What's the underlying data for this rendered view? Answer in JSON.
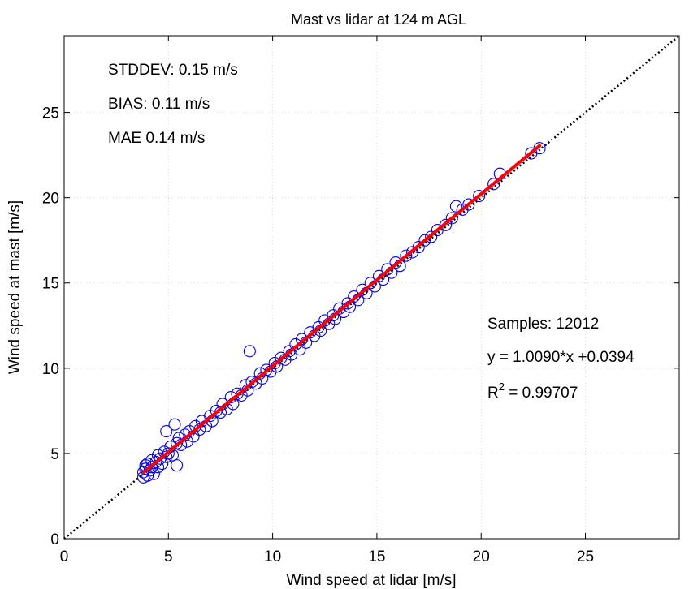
{
  "chart_data": {
    "type": "scatter",
    "title": "Mast vs lidar at 124 m AGL",
    "xlabel": "Wind speed at lidar [m/s]",
    "ylabel": "Wind speed at mast [m/s]",
    "xlim": [
      0,
      29.5
    ],
    "ylim": [
      0,
      29.5
    ],
    "xticks": [
      0,
      5,
      10,
      15,
      20,
      25
    ],
    "yticks": [
      0,
      5,
      10,
      15,
      20,
      25
    ],
    "grid": true,
    "colors": {
      "points": "#0000ff",
      "fit": "#ff0000",
      "reference": "#000000"
    },
    "series": [
      {
        "marker": "open-circle",
        "points": [
          [
            3.8,
            3.6
          ],
          [
            3.8,
            3.9
          ],
          [
            3.9,
            4.1
          ],
          [
            3.9,
            4.3
          ],
          [
            4.0,
            3.7
          ],
          [
            4.0,
            4.4
          ],
          [
            4.1,
            4.0
          ],
          [
            4.2,
            4.6
          ],
          [
            4.2,
            4.2
          ],
          [
            4.3,
            3.8
          ],
          [
            4.4,
            4.5
          ],
          [
            4.5,
            4.9
          ],
          [
            4.5,
            4.2
          ],
          [
            4.6,
            4.7
          ],
          [
            4.7,
            4.4
          ],
          [
            4.8,
            5.1
          ],
          [
            4.9,
            4.8
          ],
          [
            4.9,
            6.3
          ],
          [
            5.0,
            5.0
          ],
          [
            5.1,
            5.4
          ],
          [
            5.2,
            4.9
          ],
          [
            5.3,
            6.7
          ],
          [
            5.4,
            5.6
          ],
          [
            5.4,
            4.3
          ],
          [
            5.5,
            5.9
          ],
          [
            5.6,
            5.5
          ],
          [
            5.8,
            6.1
          ],
          [
            5.9,
            5.7
          ],
          [
            6.0,
            6.3
          ],
          [
            6.2,
            6.0
          ],
          [
            6.3,
            6.6
          ],
          [
            6.5,
            6.4
          ],
          [
            6.6,
            6.9
          ],
          [
            6.8,
            6.6
          ],
          [
            7.0,
            7.2
          ],
          [
            7.1,
            6.9
          ],
          [
            7.3,
            7.5
          ],
          [
            7.5,
            7.4
          ],
          [
            7.6,
            7.9
          ],
          [
            7.8,
            7.6
          ],
          [
            8.0,
            8.3
          ],
          [
            8.1,
            7.9
          ],
          [
            8.3,
            8.5
          ],
          [
            8.5,
            8.4
          ],
          [
            8.7,
            9.0
          ],
          [
            8.8,
            8.7
          ],
          [
            8.9,
            11.0
          ],
          [
            9.0,
            9.2
          ],
          [
            9.2,
            9.1
          ],
          [
            9.4,
            9.7
          ],
          [
            9.5,
            9.4
          ],
          [
            9.7,
            9.9
          ],
          [
            9.9,
            9.8
          ],
          [
            10.1,
            10.3
          ],
          [
            10.2,
            10.1
          ],
          [
            10.4,
            10.6
          ],
          [
            10.6,
            10.5
          ],
          [
            10.8,
            11.0
          ],
          [
            10.9,
            10.8
          ],
          [
            11.1,
            11.4
          ],
          [
            11.3,
            11.1
          ],
          [
            11.4,
            11.7
          ],
          [
            11.6,
            11.5
          ],
          [
            11.8,
            12.1
          ],
          [
            12.0,
            11.9
          ],
          [
            12.2,
            12.4
          ],
          [
            12.3,
            12.2
          ],
          [
            12.5,
            12.8
          ],
          [
            12.7,
            12.6
          ],
          [
            12.9,
            13.1
          ],
          [
            13.0,
            12.9
          ],
          [
            13.2,
            13.5
          ],
          [
            13.4,
            13.3
          ],
          [
            13.6,
            13.8
          ],
          [
            13.7,
            13.6
          ],
          [
            13.9,
            14.2
          ],
          [
            14.1,
            14.0
          ],
          [
            14.3,
            14.6
          ],
          [
            14.5,
            14.4
          ],
          [
            14.7,
            15.0
          ],
          [
            14.9,
            14.8
          ],
          [
            15.1,
            15.4
          ],
          [
            15.3,
            15.2
          ],
          [
            15.5,
            15.8
          ],
          [
            15.7,
            15.6
          ],
          [
            15.9,
            16.2
          ],
          [
            16.1,
            16.0
          ],
          [
            16.4,
            16.6
          ],
          [
            16.7,
            16.8
          ],
          [
            17.0,
            17.1
          ],
          [
            17.3,
            17.5
          ],
          [
            17.6,
            17.7
          ],
          [
            17.9,
            18.1
          ],
          [
            18.3,
            18.4
          ],
          [
            18.6,
            18.8
          ],
          [
            18.8,
            19.5
          ],
          [
            19.1,
            19.3
          ],
          [
            19.4,
            19.6
          ],
          [
            19.9,
            20.1
          ],
          [
            20.6,
            20.8
          ],
          [
            20.9,
            21.4
          ],
          [
            22.4,
            22.6
          ],
          [
            22.8,
            22.9
          ]
        ]
      }
    ],
    "fit": {
      "slope": 1.009,
      "intercept": 0.0394,
      "x_range": [
        3.8,
        22.8
      ]
    },
    "reference_line": {
      "slope": 1,
      "intercept": 0
    },
    "annotations": {
      "stddev": "STDDEV:  0.15 m/s",
      "bias": "BIAS:  0.11 m/s",
      "mae": "MAE  0.14 m/s",
      "samples": "Samples: 12012",
      "equation": "y =  1.0090*x +0.0394",
      "r2_prefix": "R",
      "r2_sup": "2",
      "r2_value": " = 0.99707"
    }
  }
}
